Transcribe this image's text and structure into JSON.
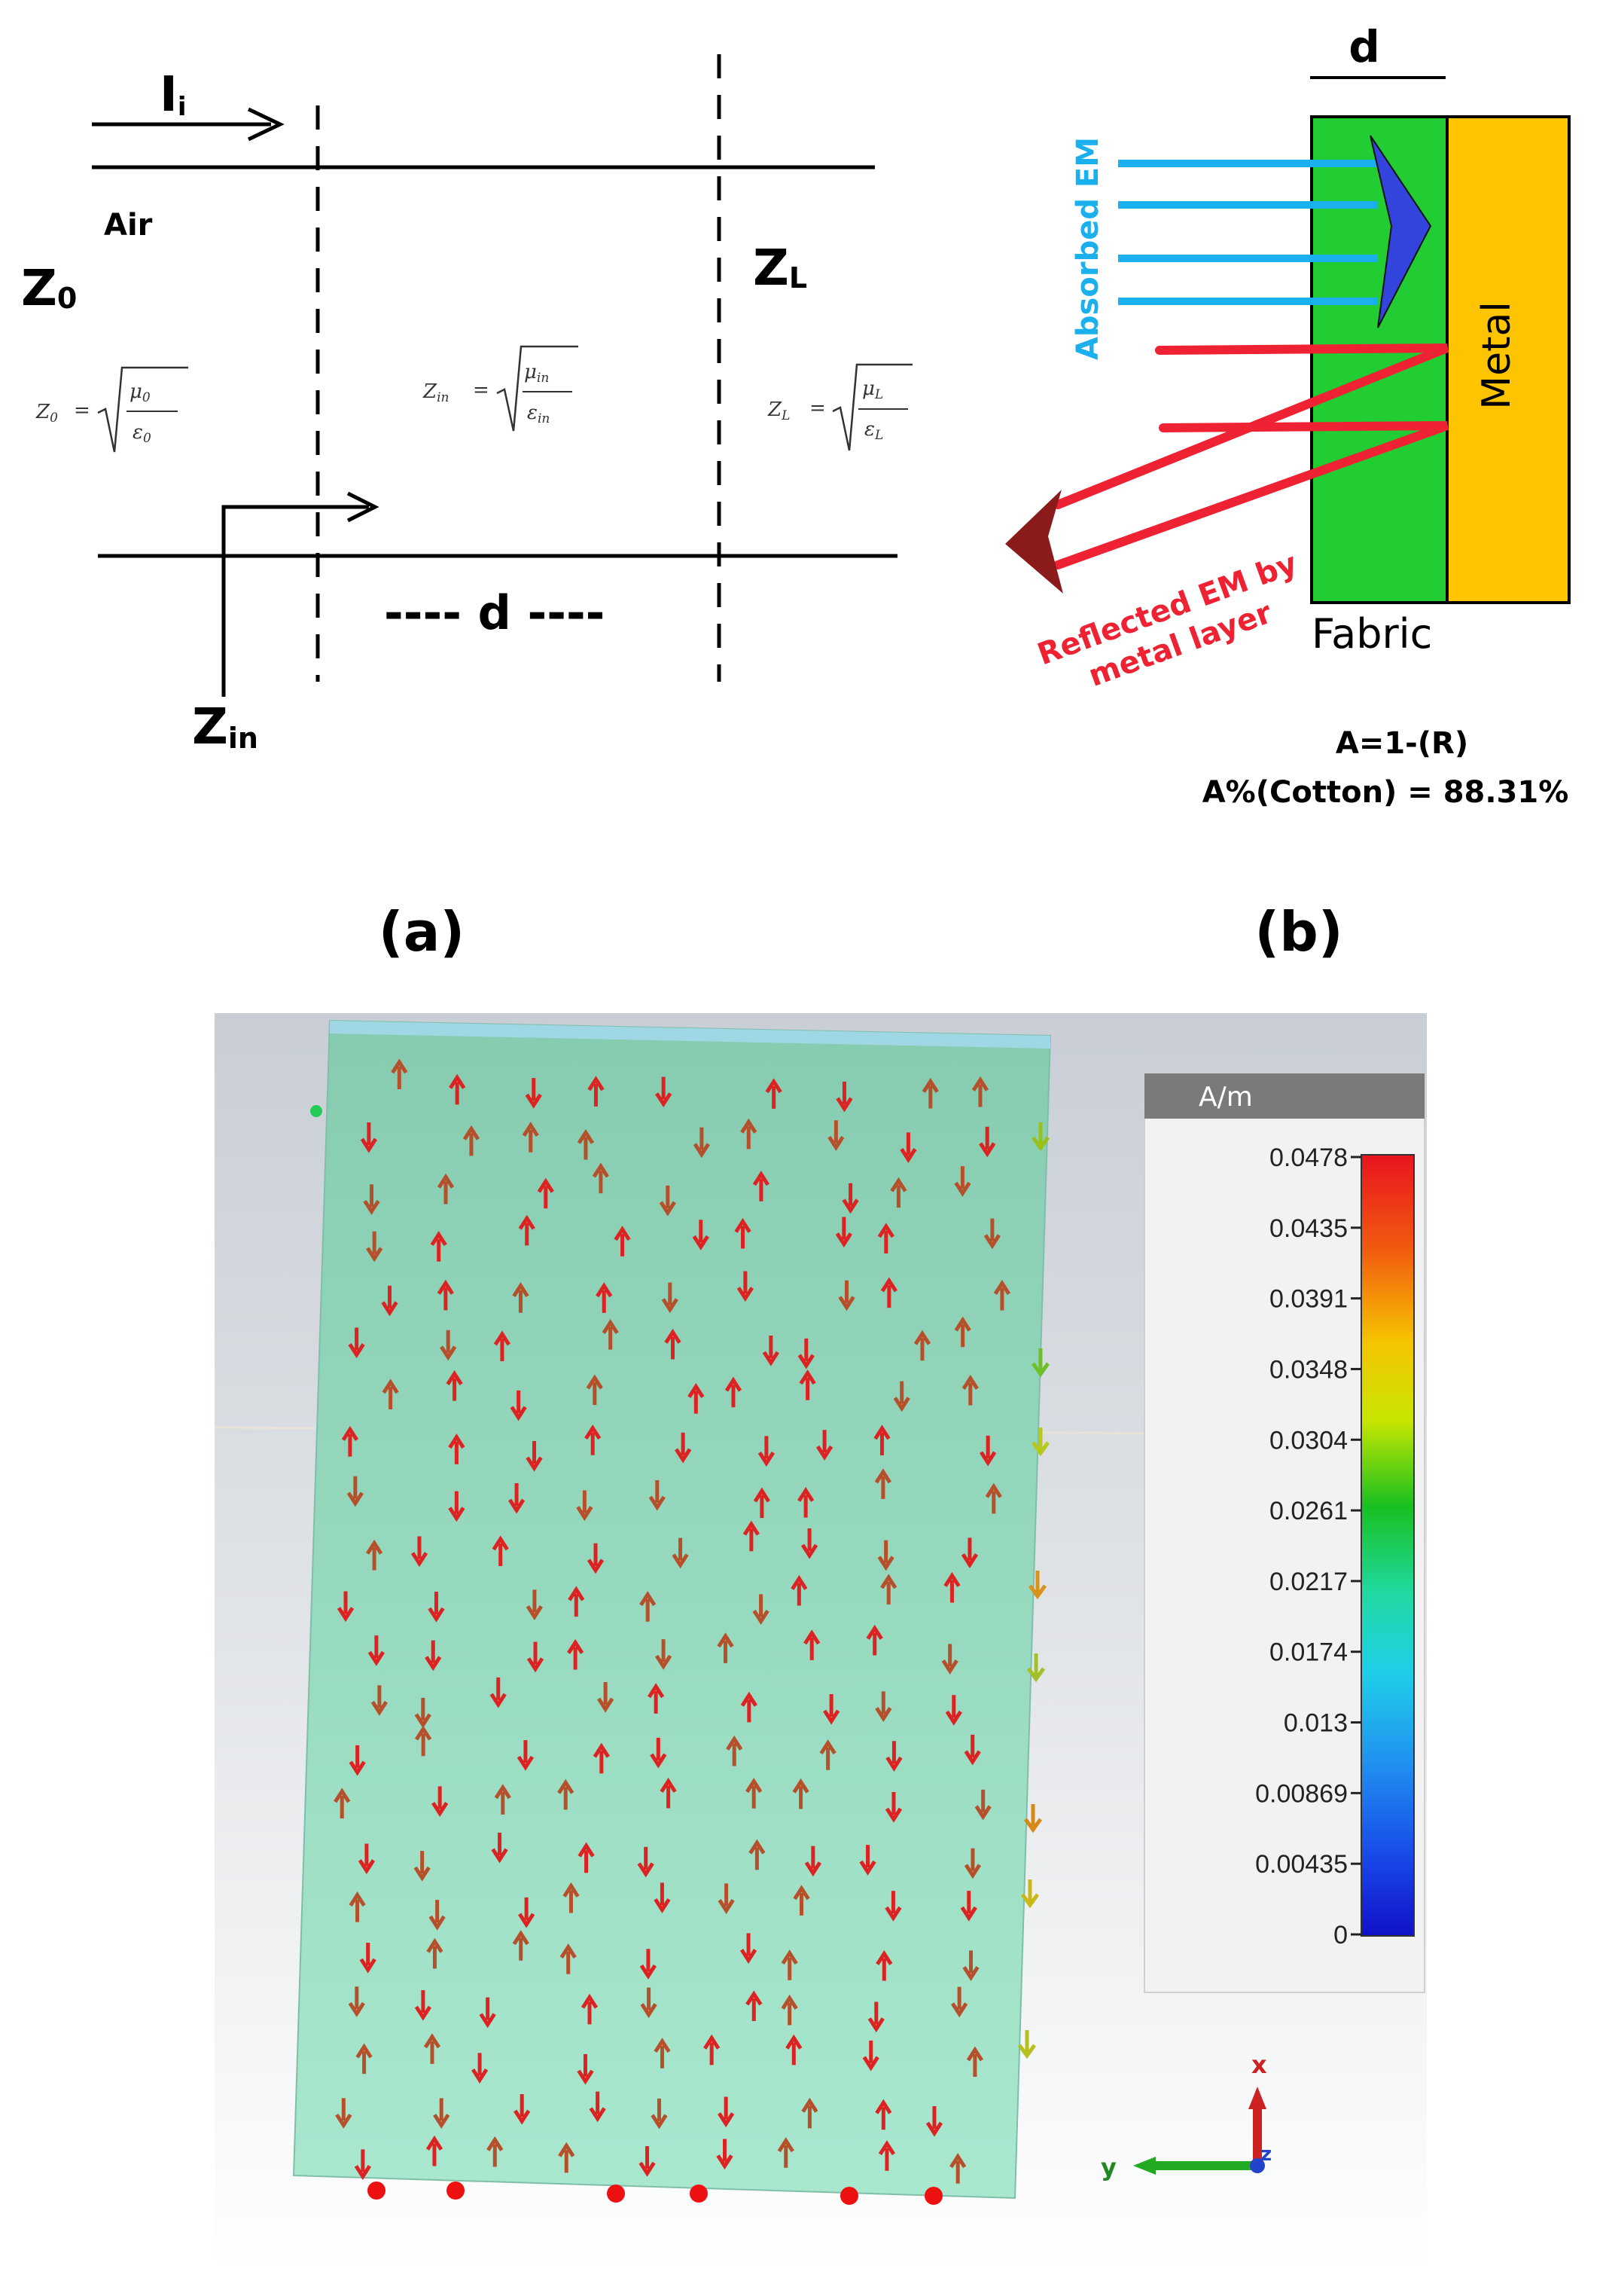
{
  "panel_a": {
    "current_label": "I",
    "current_sub": "i",
    "air_label": "Air",
    "z0_main": "Z",
    "z0_sub": "0",
    "zl_main": "Z",
    "zl_sub": "L",
    "zin_main": "Z",
    "zin_sub": "in",
    "eq_z0_lhs": "Z",
    "eq_z0_sub": "0",
    "eq_z0_num": "μ",
    "eq_z0_num_sub": "0",
    "eq_z0_den": "ε",
    "eq_z0_den_sub": "0",
    "eq_zin_lhs": "Z",
    "eq_zin_sub": "in",
    "eq_zin_num": "μ",
    "eq_zin_num_sub": "in",
    "eq_zin_den": "ε",
    "eq_zin_den_sub": "in",
    "eq_zl_lhs": "Z",
    "eq_zl_sub": "L",
    "eq_zl_num": "μ",
    "eq_zl_num_sub": "L",
    "eq_zl_den": "ε",
    "eq_zl_den_sub": "L",
    "equals": "=",
    "d_label": "---- d ----",
    "caption": "(a)"
  },
  "panel_b": {
    "d_label": "d",
    "absorbed_label": "Absorbed EM",
    "reflected_line1": "Reflected EM by",
    "reflected_line2": "metal layer",
    "metal_label": "Metal",
    "fabric_label": "Fabric",
    "formula": "A=1-(R)",
    "result": "A%(Cotton) = 88.31%",
    "caption": "(b)",
    "colors": {
      "fabric": "#22cc33",
      "metal": "#ffc400",
      "absorbed": "#1ab0ee",
      "reflected": "#ee2233",
      "absorb_arrow": "#3344dd",
      "reflect_arrow": "#8b1a1a"
    }
  },
  "simulation": {
    "legend_unit": "A/m",
    "legend_ticks": [
      "0.0478",
      "0.0435",
      "0.0391",
      "0.0348",
      "0.0304",
      "0.0261",
      "0.0217",
      "0.0174",
      "0.013",
      "0.00869",
      "0.00435",
      "0"
    ],
    "axis_x_label": "x",
    "axis_y_label": "y",
    "axis_z_label": "z",
    "colors": {
      "slab": "#92dcbf",
      "background": "#d0d4da",
      "arrow": "#dd2222"
    }
  }
}
